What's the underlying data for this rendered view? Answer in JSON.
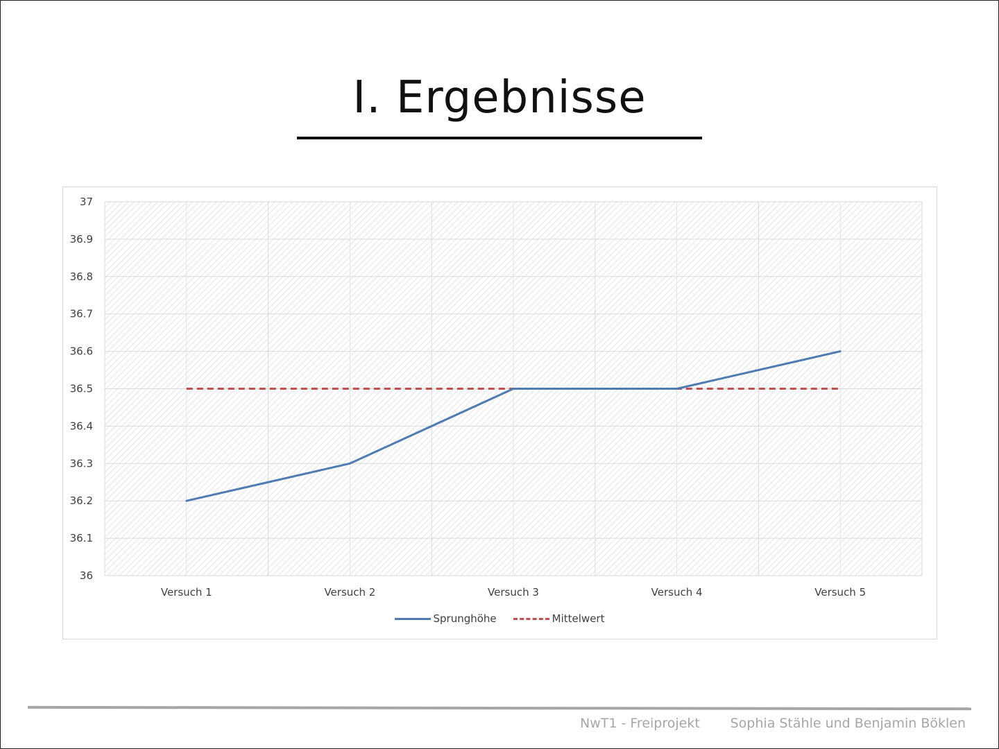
{
  "slide": {
    "title": "I. Ergebnisse",
    "footer_left": "NwT1 - Freiprojekt",
    "footer_right": "Sophia Stähle und Benjamin Böklen"
  },
  "chart_data": {
    "type": "line",
    "categories": [
      "Versuch 1",
      "Versuch 2",
      "Versuch 3",
      "Versuch 4",
      "Versuch 5"
    ],
    "series": [
      {
        "name": "Sprunghöhe",
        "values": [
          36.2,
          36.3,
          36.5,
          36.5,
          36.6
        ],
        "color": "#4f7bb3",
        "style": "solid"
      },
      {
        "name": "Mittelwert",
        "values": [
          36.5,
          36.5,
          36.5,
          36.5,
          36.5
        ],
        "color": "#c0504d",
        "style": "dashed"
      }
    ],
    "ylim": [
      36,
      37
    ],
    "yticks": [
      "36",
      "36.1",
      "36.2",
      "36.3",
      "36.4",
      "36.5",
      "36.6",
      "36.7",
      "36.8",
      "36.9",
      "37"
    ],
    "grid": true,
    "legend_position": "bottom",
    "title": "",
    "xlabel": "",
    "ylabel": ""
  }
}
